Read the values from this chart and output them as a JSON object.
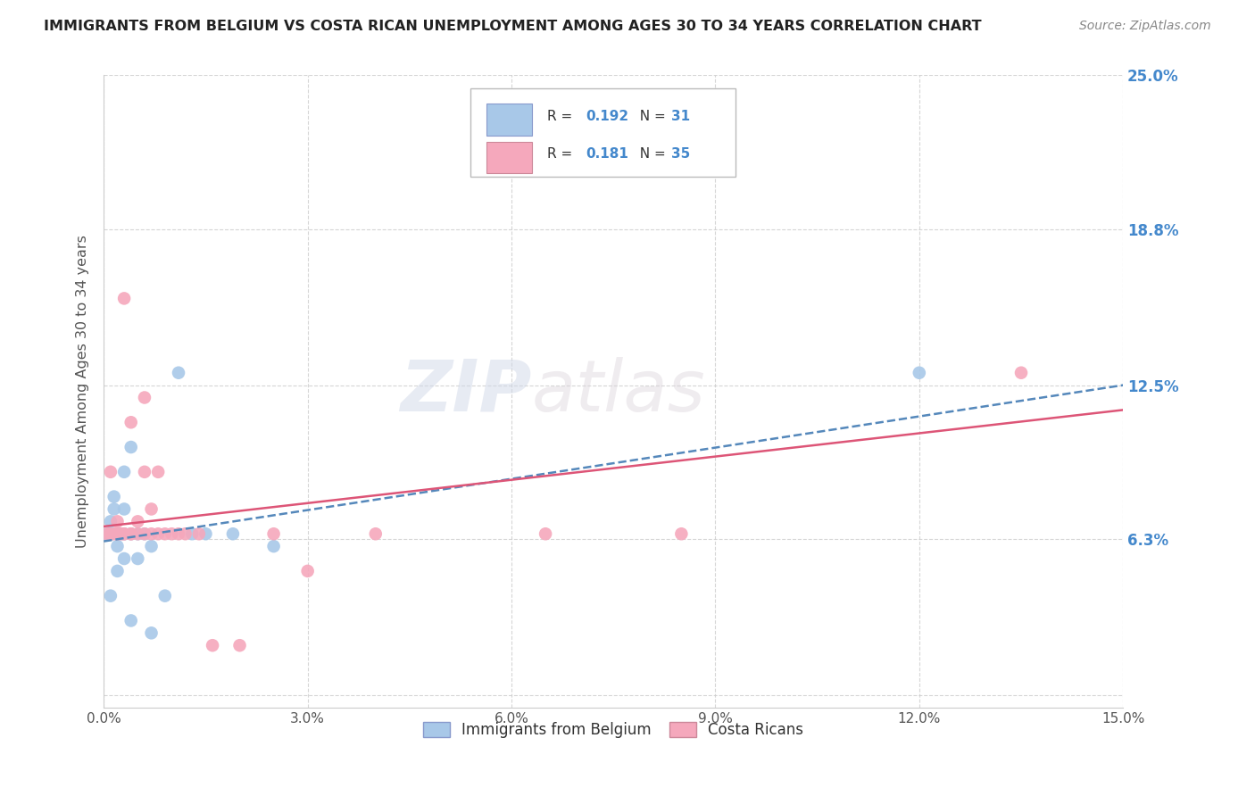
{
  "title": "IMMIGRANTS FROM BELGIUM VS COSTA RICAN UNEMPLOYMENT AMONG AGES 30 TO 34 YEARS CORRELATION CHART",
  "source": "Source: ZipAtlas.com",
  "ylabel": "Unemployment Among Ages 30 to 34 years",
  "xlim": [
    0.0,
    0.15
  ],
  "ylim": [
    -0.005,
    0.25
  ],
  "ytick_right_labels": [
    "6.3%",
    "12.5%",
    "18.8%",
    "25.0%"
  ],
  "ytick_right_values": [
    0.063,
    0.125,
    0.188,
    0.25
  ],
  "belgium_R": 0.192,
  "belgium_N": 31,
  "costarica_R": 0.181,
  "costarica_N": 35,
  "belgium_color": "#a8c8e8",
  "costarica_color": "#f5a8bc",
  "belgium_trend_color": "#5588bb",
  "costarica_trend_color": "#dd5577",
  "watermark_zip": "ZIP",
  "watermark_atlas": "atlas",
  "belgium_x": [
    0.0005,
    0.0008,
    0.001,
    0.001,
    0.001,
    0.0012,
    0.0015,
    0.0015,
    0.002,
    0.002,
    0.002,
    0.0025,
    0.003,
    0.003,
    0.003,
    0.003,
    0.004,
    0.004,
    0.004,
    0.005,
    0.005,
    0.006,
    0.007,
    0.007,
    0.009,
    0.011,
    0.013,
    0.015,
    0.019,
    0.025,
    0.12
  ],
  "belgium_y": [
    0.065,
    0.065,
    0.065,
    0.04,
    0.07,
    0.065,
    0.075,
    0.08,
    0.065,
    0.06,
    0.05,
    0.065,
    0.065,
    0.055,
    0.075,
    0.09,
    0.065,
    0.03,
    0.1,
    0.065,
    0.055,
    0.065,
    0.025,
    0.06,
    0.04,
    0.13,
    0.065,
    0.065,
    0.065,
    0.06,
    0.13
  ],
  "costarica_x": [
    0.0005,
    0.001,
    0.001,
    0.0015,
    0.002,
    0.002,
    0.0025,
    0.003,
    0.003,
    0.003,
    0.004,
    0.004,
    0.004,
    0.005,
    0.005,
    0.006,
    0.006,
    0.006,
    0.007,
    0.007,
    0.008,
    0.008,
    0.009,
    0.01,
    0.011,
    0.012,
    0.014,
    0.016,
    0.02,
    0.025,
    0.03,
    0.04,
    0.065,
    0.085,
    0.135
  ],
  "costarica_y": [
    0.065,
    0.065,
    0.09,
    0.065,
    0.07,
    0.065,
    0.065,
    0.065,
    0.16,
    0.065,
    0.065,
    0.065,
    0.11,
    0.07,
    0.065,
    0.12,
    0.09,
    0.065,
    0.075,
    0.065,
    0.09,
    0.065,
    0.065,
    0.065,
    0.065,
    0.065,
    0.065,
    0.02,
    0.02,
    0.065,
    0.05,
    0.065,
    0.065,
    0.065,
    0.13
  ],
  "belgium_trend_x0": 0.0,
  "belgium_trend_x1": 0.15,
  "belgium_trend_y0": 0.062,
  "belgium_trend_y1": 0.125,
  "costarica_trend_x0": 0.0,
  "costarica_trend_x1": 0.15,
  "costarica_trend_y0": 0.068,
  "costarica_trend_y1": 0.115
}
